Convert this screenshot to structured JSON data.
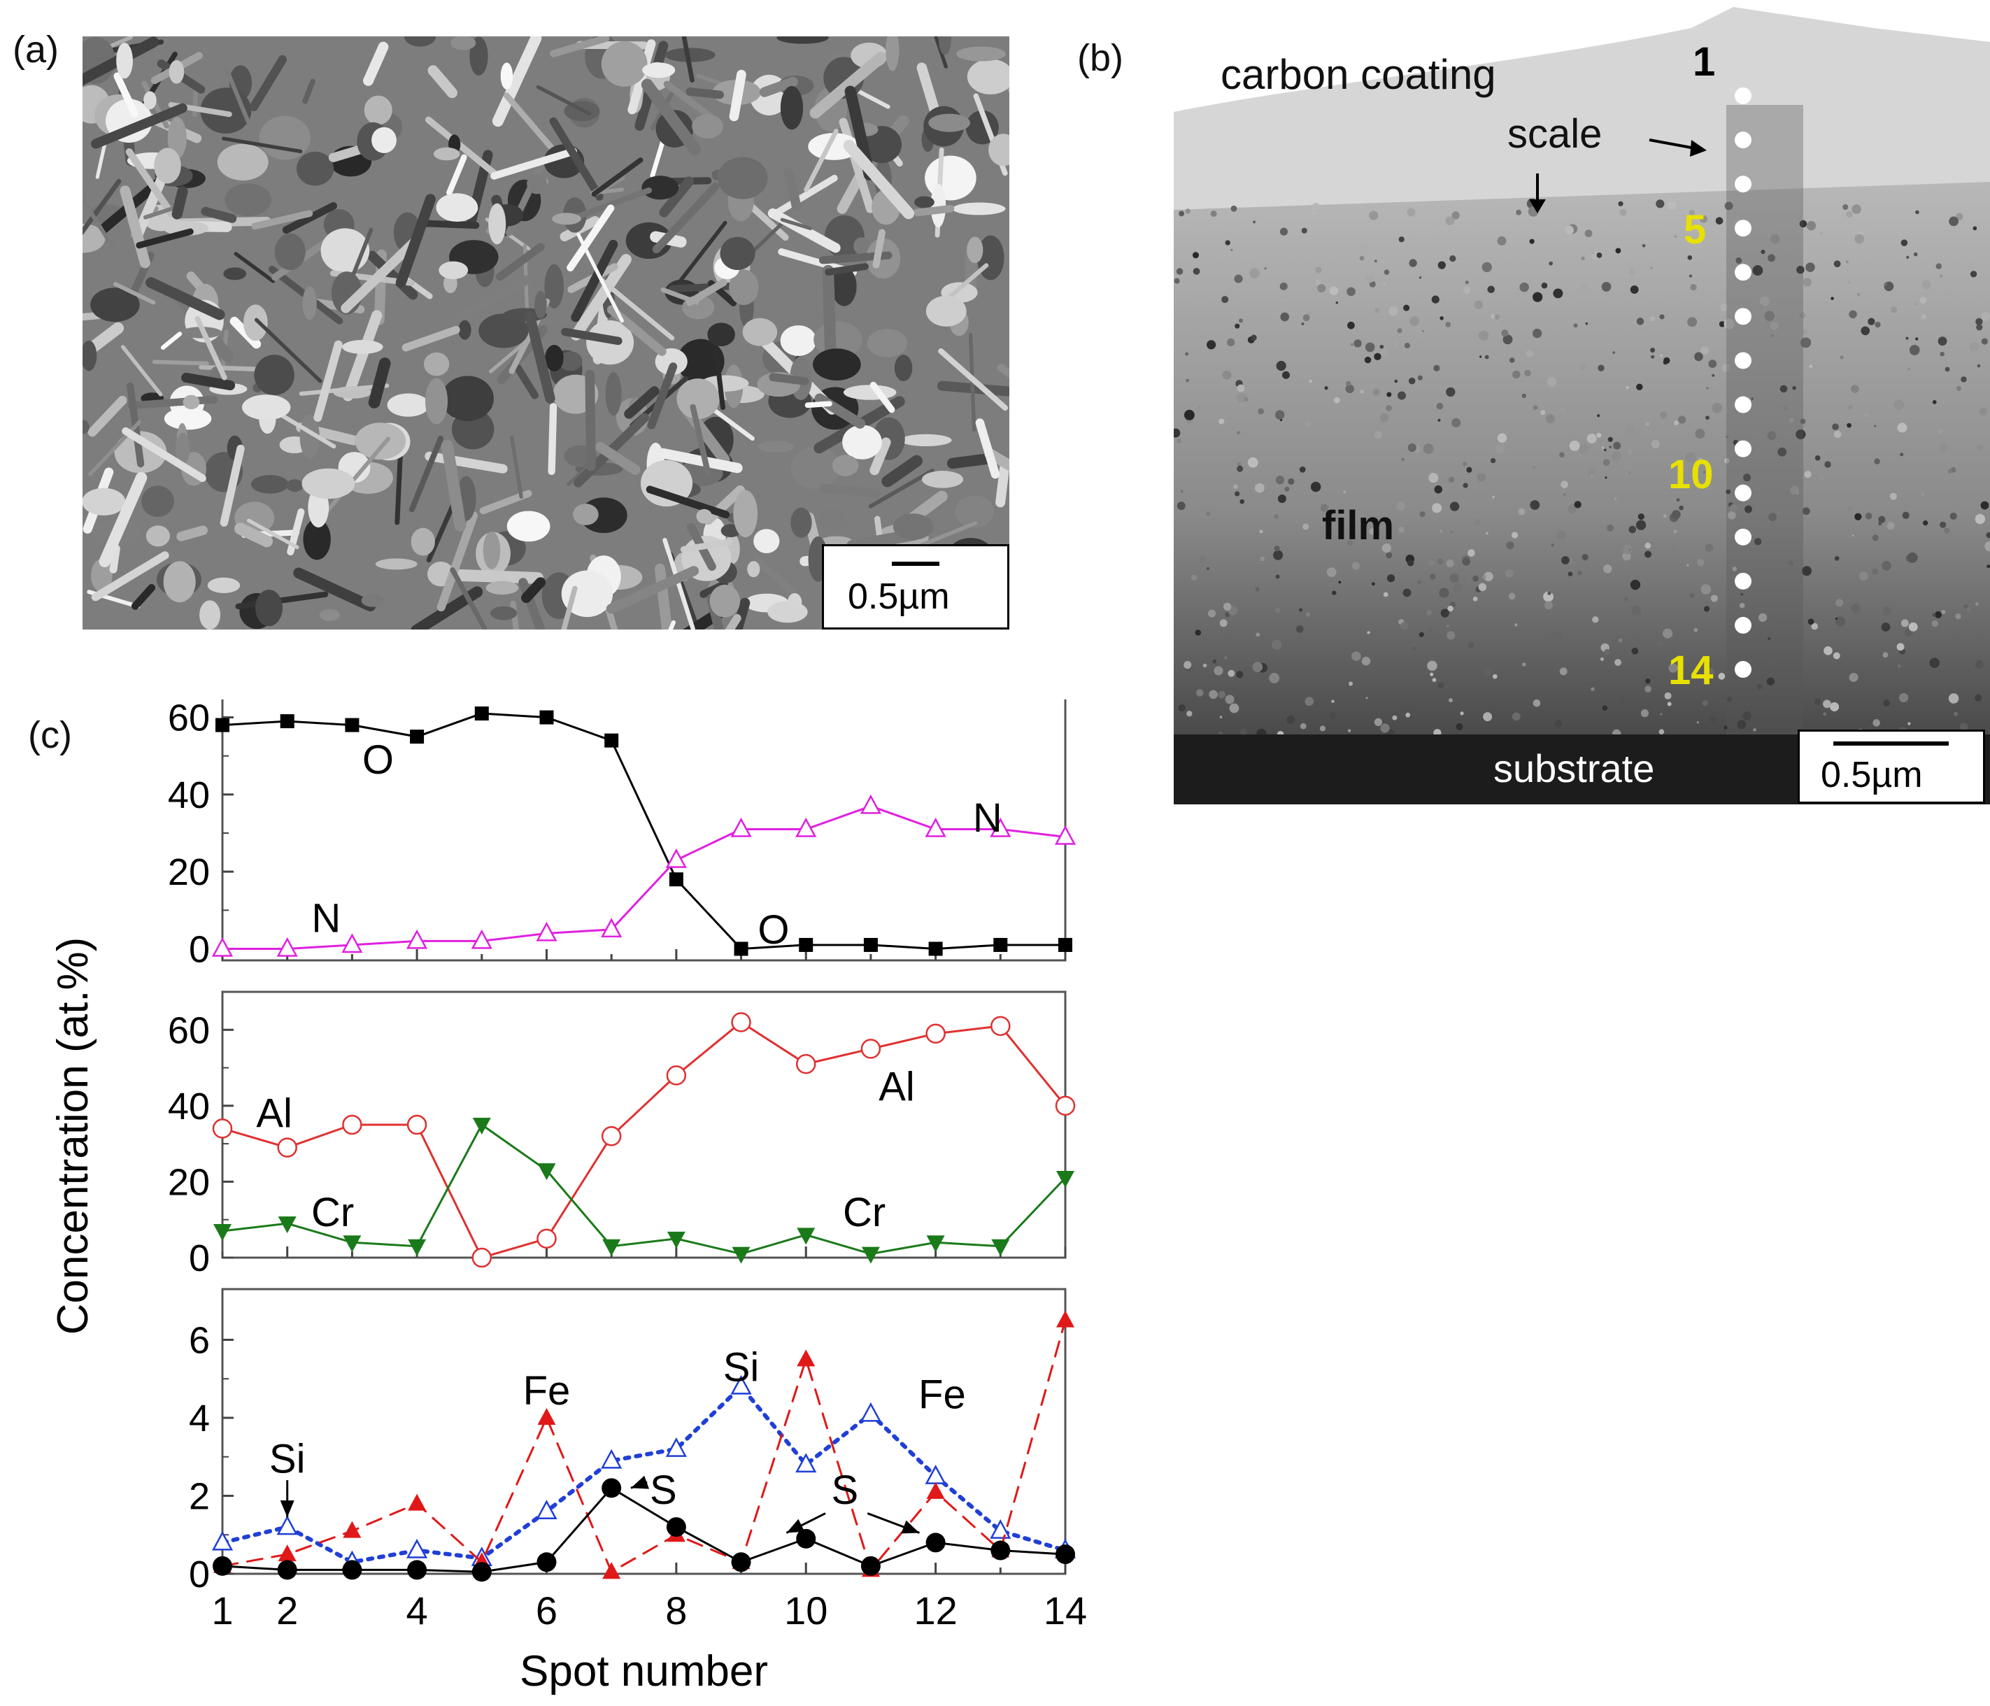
{
  "panels": {
    "a": {
      "label": "(a)",
      "scale_bar": "0.5µm"
    },
    "b": {
      "label": "(b)",
      "annotations": {
        "carbon_coating": "carbon coating",
        "scale": "scale",
        "film": "film",
        "substrate": "substrate",
        "spot_1": "1",
        "spot_5": "5",
        "spot_10": "10",
        "spot_14": "14"
      },
      "scale_bar": "0.5µm",
      "spot_count": 14,
      "colors": {
        "spot_dots": "#ffffff",
        "yellow_labels": "#e8e000"
      }
    },
    "c": {
      "label": "(c)"
    }
  },
  "chart_data": {
    "type": "line",
    "xlabel": "Spot number",
    "ylabel": "Concentration (at.%)",
    "x": [
      1,
      2,
      3,
      4,
      5,
      6,
      7,
      8,
      9,
      10,
      11,
      12,
      13,
      14
    ],
    "xticks": [
      1,
      2,
      4,
      6,
      8,
      10,
      12,
      14
    ],
    "xlim": [
      1,
      14
    ],
    "subplots": [
      {
        "ylim": [
          -3,
          65
        ],
        "yticks": [
          0,
          20,
          40,
          60
        ],
        "series": [
          {
            "name": "O",
            "marker": "square-filled",
            "line": "solid",
            "color": "#000000",
            "values": [
              58,
              59,
              58,
              55,
              61,
              60,
              54,
              18,
              0,
              1,
              1,
              0,
              1,
              1
            ]
          },
          {
            "name": "N",
            "marker": "triangle-open",
            "line": "solid",
            "color": "#e020e0",
            "values": [
              0,
              0,
              1,
              2,
              2,
              4,
              5,
              23,
              31,
              31,
              37,
              31,
              31,
              29
            ]
          }
        ],
        "labels": [
          {
            "text": "O",
            "x": 3.4,
            "y": 49
          },
          {
            "text": "N",
            "x": 2.6,
            "y": 8
          },
          {
            "text": "O",
            "x": 9.5,
            "y": 5
          },
          {
            "text": "N",
            "x": 12.8,
            "y": 34
          }
        ]
      },
      {
        "ylim": [
          0,
          70
        ],
        "yticks": [
          0,
          20,
          40,
          60
        ],
        "series": [
          {
            "name": "Al",
            "marker": "circle-open",
            "line": "solid",
            "color": "#e03030",
            "values": [
              34,
              29,
              35,
              35,
              0,
              5,
              32,
              48,
              62,
              51,
              55,
              59,
              61,
              40
            ]
          },
          {
            "name": "Cr",
            "marker": "triangle-down-filled",
            "line": "solid",
            "color": "#1a7a1a",
            "values": [
              7,
              9,
              4,
              3,
              35,
              23,
              3,
              5,
              1,
              6,
              1,
              4,
              3,
              21
            ]
          }
        ],
        "labels": [
          {
            "text": "Al",
            "x": 1.8,
            "y": 38
          },
          {
            "text": "Cr",
            "x": 2.7,
            "y": 12
          },
          {
            "text": "Al",
            "x": 11.4,
            "y": 45
          },
          {
            "text": "Cr",
            "x": 10.9,
            "y": 12
          }
        ]
      },
      {
        "ylim": [
          0,
          7.3
        ],
        "yticks": [
          0,
          2,
          4,
          6
        ],
        "series": [
          {
            "name": "Si",
            "marker": "triangle-open",
            "line": "dotted",
            "color": "#1f3fd6",
            "values": [
              0.8,
              1.2,
              0.3,
              0.6,
              0.4,
              1.6,
              2.9,
              3.2,
              4.8,
              2.8,
              4.1,
              2.5,
              1.1,
              0.6
            ]
          },
          {
            "name": "Fe",
            "marker": "triangle-filled",
            "line": "dashed",
            "color": "#e01818",
            "values": [
              0.2,
              0.5,
              1.1,
              1.8,
              0.3,
              4.0,
              0.05,
              1.0,
              0.3,
              5.5,
              0.1,
              2.1,
              0.6,
              6.5
            ]
          },
          {
            "name": "S",
            "marker": "circle-filled",
            "line": "solid",
            "color": "#000000",
            "values": [
              0.2,
              0.1,
              0.1,
              0.1,
              0.05,
              0.3,
              2.2,
              1.2,
              0.3,
              0.9,
              0.2,
              0.8,
              0.6,
              0.5
            ]
          }
        ],
        "labels": [
          {
            "text": "Si",
            "x": 2.0,
            "y": 2.95
          },
          {
            "text": "Fe",
            "x": 6.0,
            "y": 4.7
          },
          {
            "text": "Si",
            "x": 9.0,
            "y": 5.3
          },
          {
            "text": "Fe",
            "x": 12.1,
            "y": 4.6
          },
          {
            "text": "S",
            "x": 7.8,
            "y": 2.15
          },
          {
            "text": "S",
            "x": 10.6,
            "y": 2.15
          }
        ]
      }
    ]
  }
}
